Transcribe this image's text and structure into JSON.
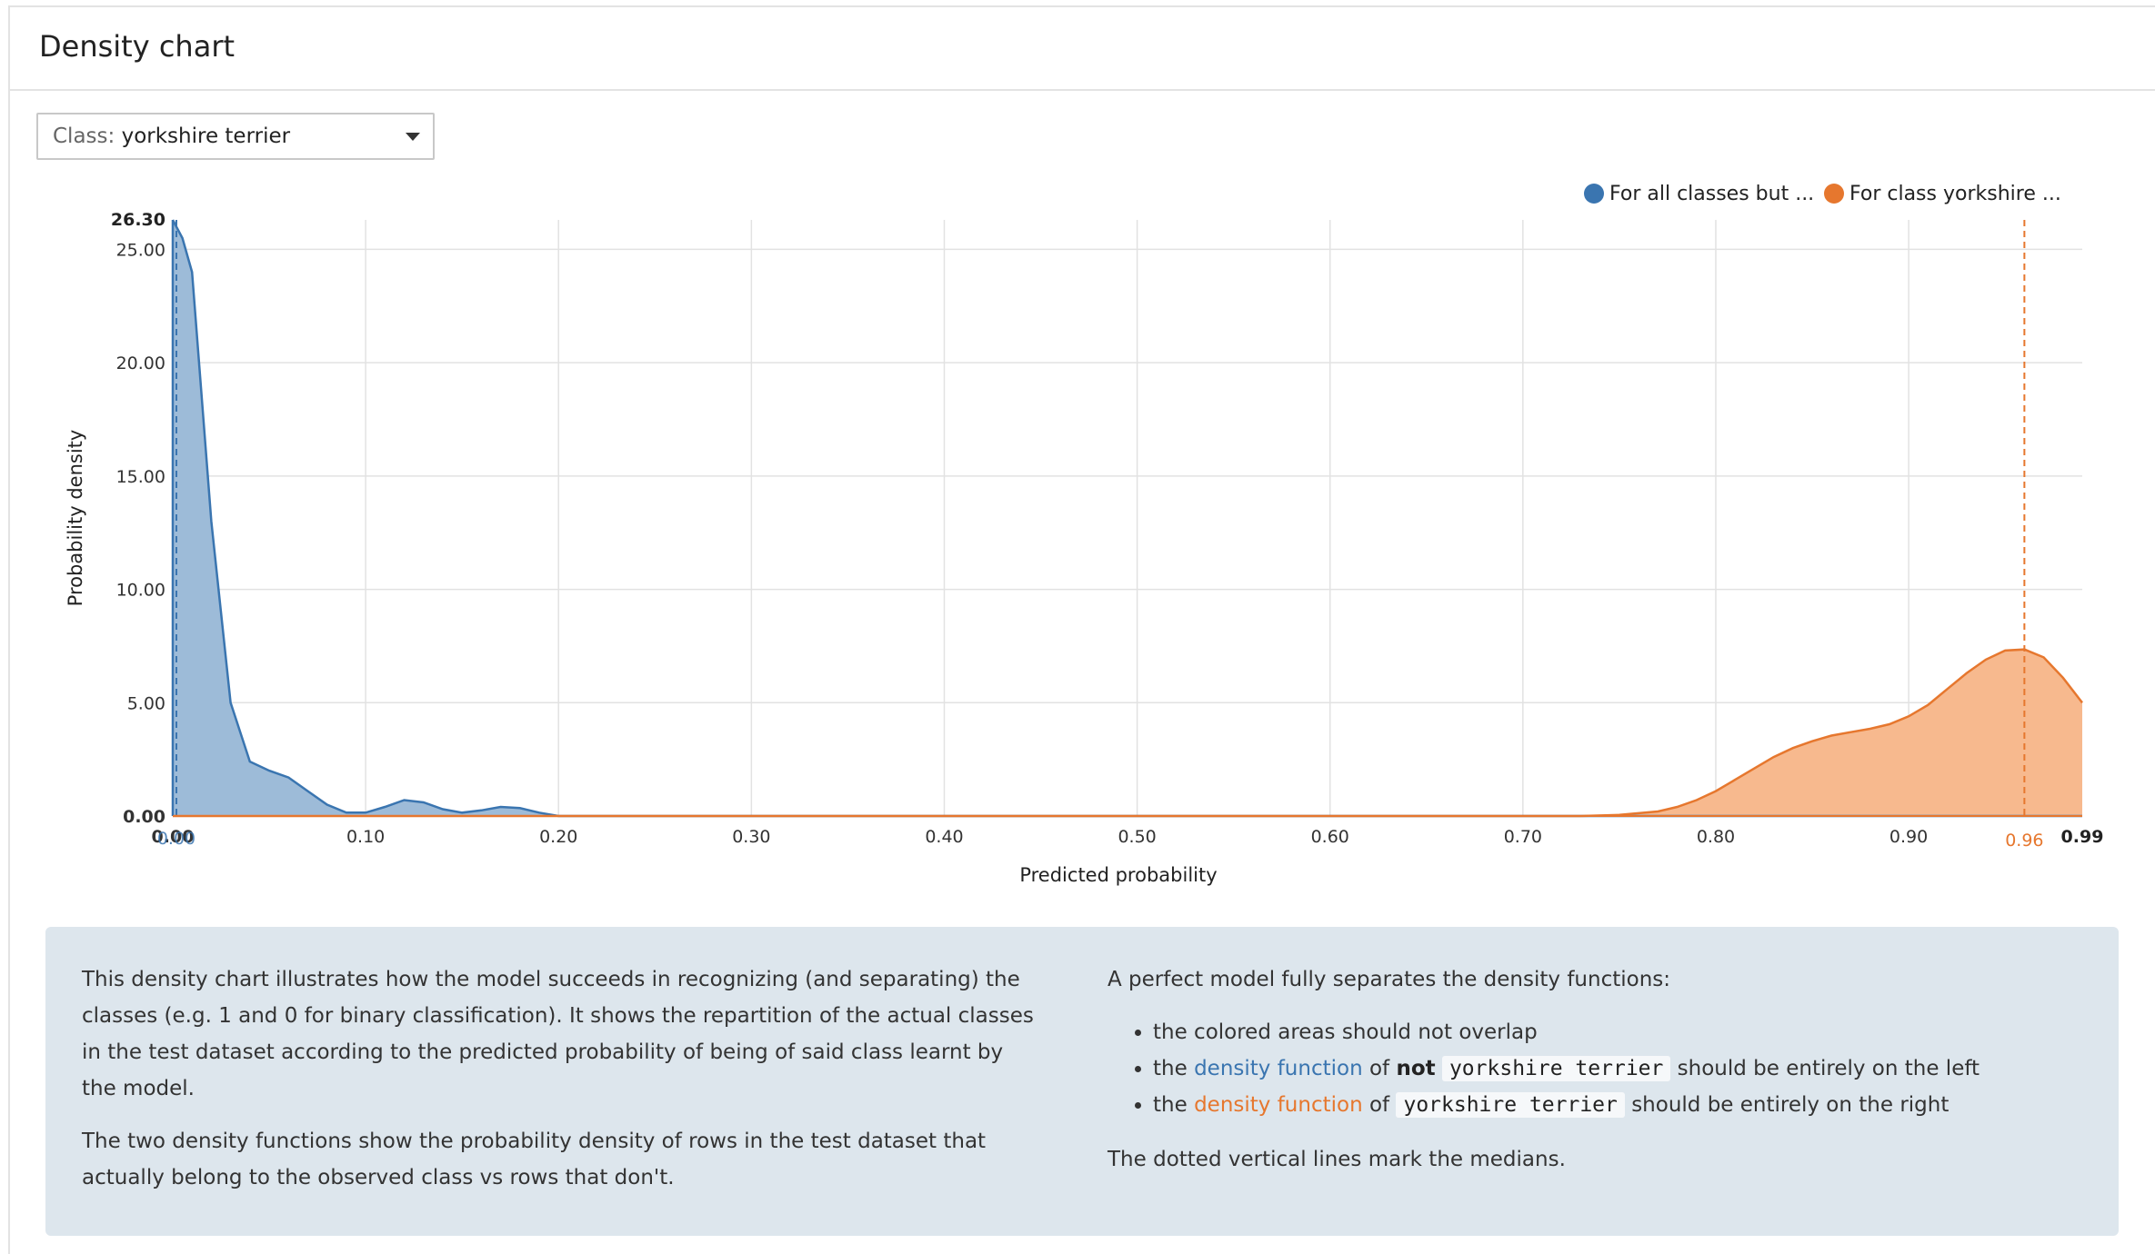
{
  "panel": {
    "title": "Density chart"
  },
  "class_select": {
    "prefix": "Class:",
    "value": "yorkshire terrier"
  },
  "legend": [
    {
      "label": "For all classes but ...",
      "color": "#3a75b0"
    },
    {
      "label": "For class yorkshire ...",
      "color": "#e6772e"
    }
  ],
  "chart_data": {
    "type": "area",
    "xlabel": "Predicted probability",
    "ylabel": "Probability density",
    "xlim": [
      0.0,
      0.99
    ],
    "ylim": [
      0.0,
      26.3
    ],
    "x_ticks": [
      "0.00",
      "0.10",
      "0.20",
      "0.30",
      "0.40",
      "0.50",
      "0.60",
      "0.70",
      "0.80",
      "0.90"
    ],
    "x_tick_values": [
      0.0,
      0.1,
      0.2,
      0.3,
      0.4,
      0.5,
      0.6,
      0.7,
      0.8,
      0.9
    ],
    "x_max_label": "0.99",
    "y_ticks": [
      "0.00",
      "5.00",
      "10.00",
      "15.00",
      "20.00",
      "25.00"
    ],
    "y_tick_values": [
      0,
      5,
      10,
      15,
      20,
      25
    ],
    "y_max_label": "26.30",
    "grid": true,
    "legend_position": "top-right",
    "series": [
      {
        "name": "For all classes but ...",
        "color": "#3a75b0",
        "fill": "#9dbbd8",
        "median": 0.0,
        "median_label": "0.00",
        "x": [
          0.0,
          0.005,
          0.01,
          0.02,
          0.03,
          0.04,
          0.05,
          0.06,
          0.07,
          0.08,
          0.09,
          0.1,
          0.11,
          0.12,
          0.13,
          0.14,
          0.15,
          0.16,
          0.17,
          0.18,
          0.19,
          0.2,
          0.99
        ],
        "y": [
          26.3,
          25.5,
          24.0,
          13.0,
          5.0,
          2.4,
          2.0,
          1.7,
          1.1,
          0.5,
          0.15,
          0.15,
          0.4,
          0.7,
          0.6,
          0.3,
          0.15,
          0.25,
          0.4,
          0.35,
          0.15,
          0.0,
          0.0
        ]
      },
      {
        "name": "For class yorkshire ...",
        "color": "#e6772e",
        "fill": "#f7b98e",
        "median": 0.96,
        "median_label": "0.96",
        "x": [
          0.0,
          0.73,
          0.75,
          0.77,
          0.78,
          0.79,
          0.8,
          0.81,
          0.82,
          0.83,
          0.84,
          0.85,
          0.86,
          0.87,
          0.88,
          0.89,
          0.9,
          0.91,
          0.92,
          0.93,
          0.94,
          0.95,
          0.96,
          0.97,
          0.98,
          0.99
        ],
        "y": [
          0.0,
          0.0,
          0.05,
          0.2,
          0.4,
          0.7,
          1.1,
          1.6,
          2.1,
          2.6,
          3.0,
          3.3,
          3.55,
          3.7,
          3.85,
          4.05,
          4.4,
          4.9,
          5.6,
          6.3,
          6.9,
          7.3,
          7.35,
          7.0,
          6.1,
          5.0
        ]
      }
    ]
  },
  "info": {
    "left_p1": "This density chart illustrates how the model succeeds in recognizing (and separating) the classes (e.g. 1 and 0 for binary classification). It shows the repartition of the actual classes in the test dataset according to the predicted probability of being of said class learnt by the model.",
    "left_p2": "The two density functions show the probability density of rows in the test dataset that actually belong to the observed class vs rows that don't.",
    "right_intro": "A perfect model fully separates the density functions:",
    "bullet1": "the colored areas should not overlap",
    "bullet2_pre": "the",
    "bullet2_link": "density function",
    "bullet2_of": "of",
    "bullet2_not": "not",
    "bullet2_code": "yorkshire terrier",
    "bullet2_post": "should be entirely on the left",
    "bullet3_pre": "the",
    "bullet3_link": "density function",
    "bullet3_of": "of",
    "bullet3_code": "yorkshire terrier",
    "bullet3_post": "should be entirely on the right",
    "right_outro": "The dotted vertical lines mark the medians."
  }
}
